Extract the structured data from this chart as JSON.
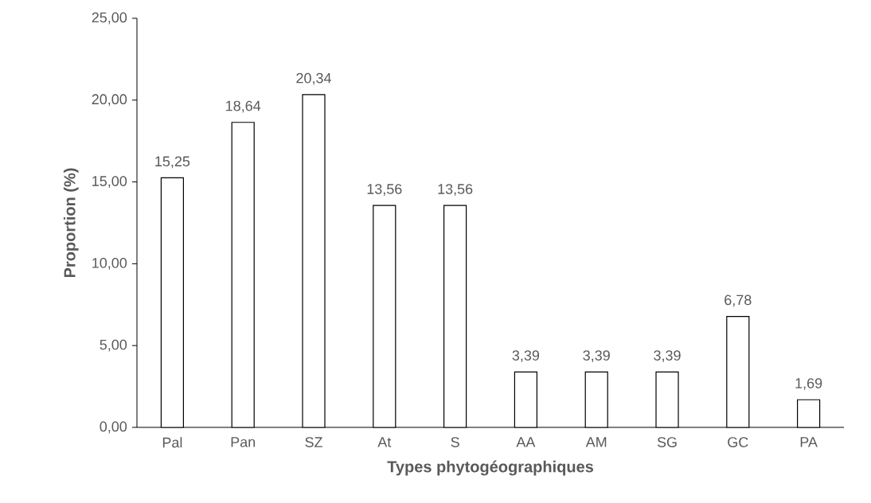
{
  "chart_data": {
    "type": "bar",
    "xlabel": "Types phytogéographiques",
    "ylabel": "Proportion (%)",
    "categories": [
      "Pal",
      "Pan",
      "SZ",
      "At",
      "S",
      "AA",
      "AM",
      "SG",
      "GC",
      "PA"
    ],
    "values": [
      15.25,
      18.64,
      20.34,
      13.56,
      13.56,
      3.39,
      3.39,
      3.39,
      6.78,
      1.69
    ],
    "value_labels": [
      "15,25",
      "18,64",
      "20,34",
      "13,56",
      "13,56",
      "3,39",
      "3,39",
      "3,39",
      "6,78",
      "1,69"
    ],
    "color": "#000000",
    "ylim": [
      0,
      25
    ],
    "yticks": [
      {
        "value": 0,
        "label": "0,00"
      },
      {
        "value": 5,
        "label": "5,00"
      },
      {
        "value": 10,
        "label": "10,00"
      },
      {
        "value": 15,
        "label": "15,00"
      },
      {
        "value": 20,
        "label": "20,00"
      },
      {
        "value": 25,
        "label": "25,00"
      }
    ],
    "grid": false
  }
}
